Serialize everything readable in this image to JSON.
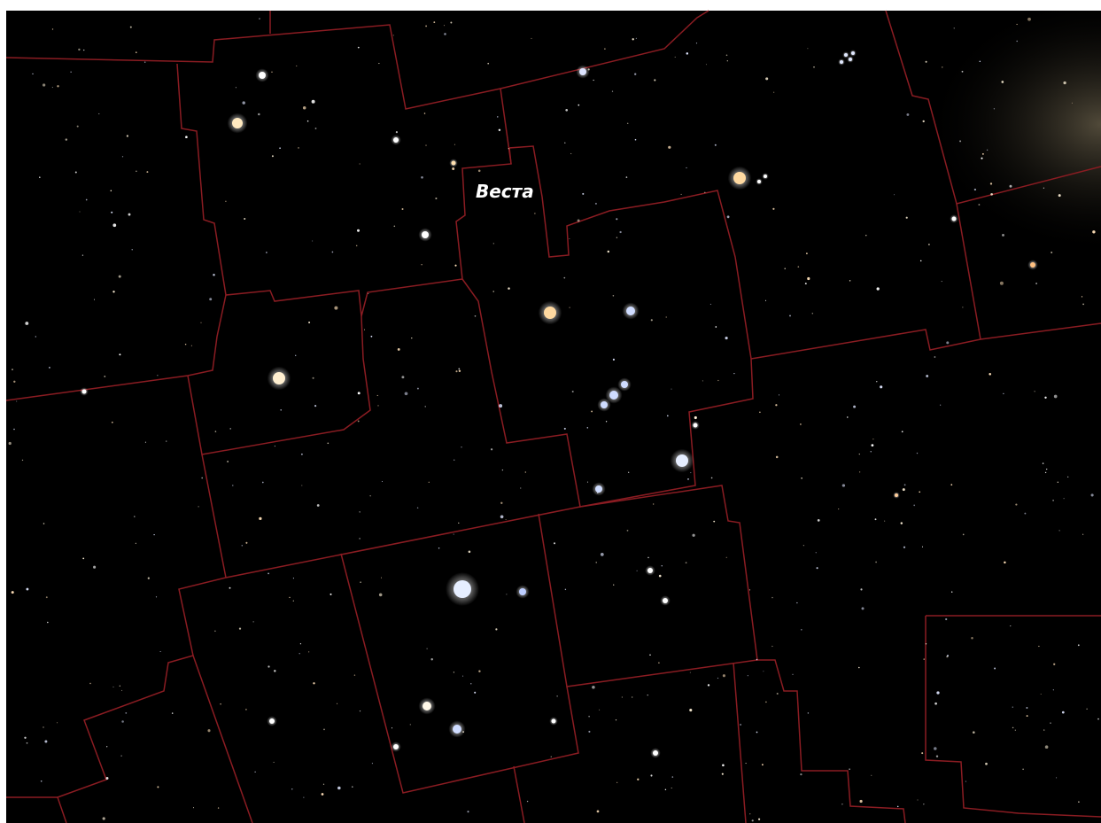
{
  "label": {
    "text": "Веста"
  }
}
